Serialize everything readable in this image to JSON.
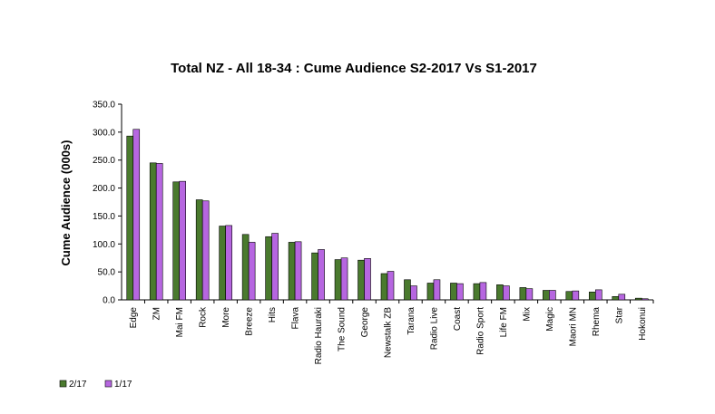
{
  "chart_data": {
    "type": "bar",
    "title": "Total NZ - All 18-34 : Cume Audience S2-2017 Vs S1-2017",
    "xlabel": "",
    "ylabel": "Cume Audience (000s)",
    "ylim": [
      0,
      350
    ],
    "yticks": [
      "0.0",
      "50.0",
      "100.0",
      "150.0",
      "200.0",
      "250.0",
      "300.0",
      "350.0"
    ],
    "grid": false,
    "legend_position": "bottom-left",
    "categories": [
      "Edge",
      "ZM",
      "Mai FM",
      "Rock",
      "More",
      "Breeze",
      "Hits",
      "Flava",
      "Radio Hauraki",
      "The Sound",
      "George",
      "Newstalk ZB",
      "Tarana",
      "Radio Live",
      "Coast",
      "Radio Sport",
      "Life FM",
      "Mix",
      "Magic",
      "Maori MN",
      "Rhema",
      "Star",
      "Hokonui"
    ],
    "series": [
      {
        "name": "2/17",
        "color": "#4a7a2e",
        "values": [
          293,
          245,
          211,
          179,
          132,
          117,
          113,
          103,
          84,
          72,
          71,
          47,
          36,
          30,
          30,
          29,
          27,
          22,
          17,
          15,
          14,
          6,
          3
        ]
      },
      {
        "name": "1/17",
        "color": "#b666e0",
        "values": [
          305,
          244,
          212,
          177,
          133,
          103,
          119,
          104,
          90,
          75,
          74,
          51,
          25,
          36,
          29,
          31,
          25,
          20,
          17,
          16,
          18,
          10,
          2
        ]
      }
    ]
  }
}
